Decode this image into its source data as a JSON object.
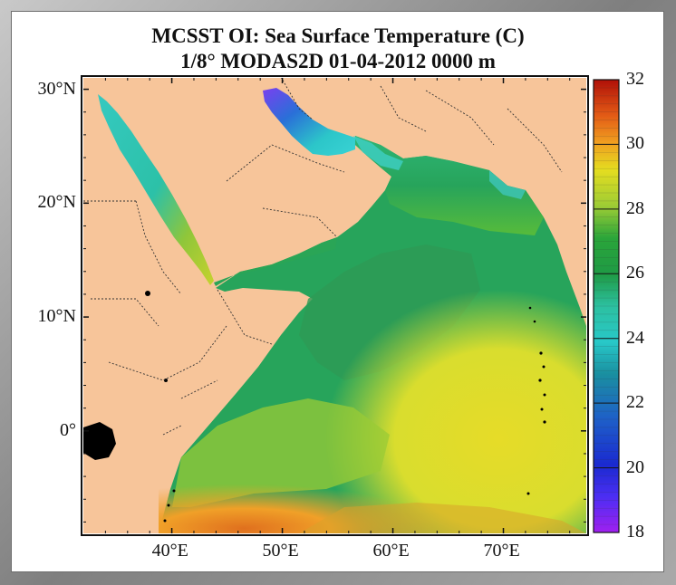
{
  "title": {
    "line1": "MCSST OI:  Sea Surface Temperature (C)",
    "line2": "1/8° MODAS2D 01-04-2012 0000 m"
  },
  "axes": {
    "lat_labels": [
      {
        "value": 30,
        "text": "30°N"
      },
      {
        "value": 20,
        "text": "20°N"
      },
      {
        "value": 10,
        "text": "10°N"
      },
      {
        "value": 0,
        "text": "0°"
      }
    ],
    "lon_labels": [
      {
        "value": 40,
        "text": "40°E"
      },
      {
        "value": 50,
        "text": "50°E"
      },
      {
        "value": 60,
        "text": "60°E"
      },
      {
        "value": 70,
        "text": "70°E"
      }
    ],
    "lon_range": [
      32,
      77.5
    ],
    "lat_range": [
      -9,
      31
    ]
  },
  "colorbar": {
    "min": 18,
    "max": 32,
    "labels": [
      "32",
      "30",
      "28",
      "26",
      "24",
      "22",
      "20",
      "18"
    ]
  },
  "colors": {
    "land": "#f7c59a",
    "background": "#ffffff",
    "frame": "#8c8c8c",
    "unknown_water": "#000000"
  }
}
